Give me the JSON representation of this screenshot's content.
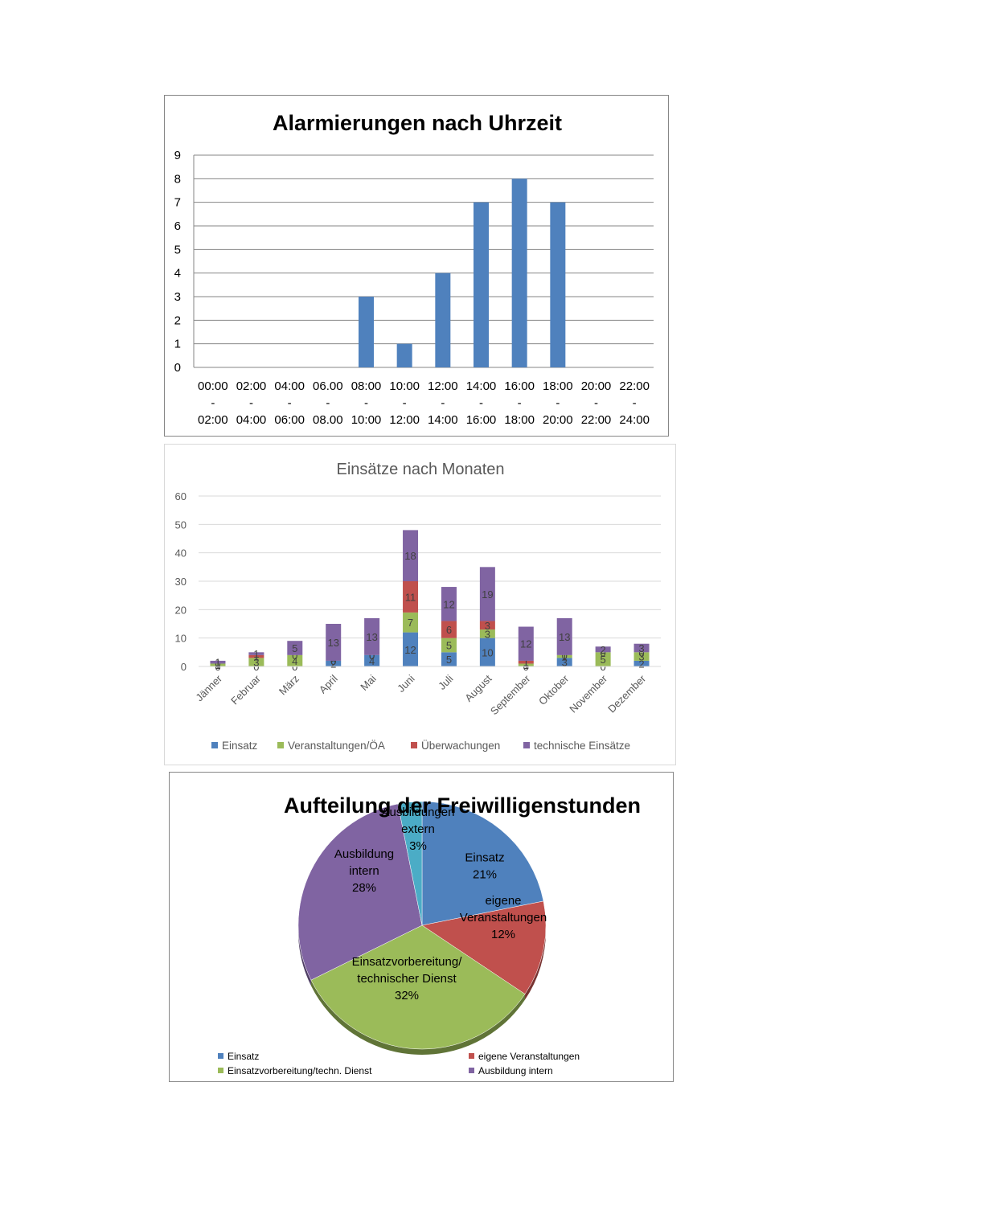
{
  "chart_data": [
    {
      "type": "bar",
      "title": "Alarmierungen nach Uhrzeit",
      "categories": [
        [
          "00:00",
          "-",
          "02:00"
        ],
        [
          "02:00",
          "-",
          "04:00"
        ],
        [
          "04:00",
          "-",
          "06:00"
        ],
        [
          "06.00",
          "-",
          "08.00"
        ],
        [
          "08:00",
          "-",
          "10:00"
        ],
        [
          "10:00",
          "-",
          "12:00"
        ],
        [
          "12:00",
          "-",
          "14:00"
        ],
        [
          "14:00",
          "-",
          "16:00"
        ],
        [
          "16:00",
          "-",
          "18:00"
        ],
        [
          "18:00",
          "-",
          "20:00"
        ],
        [
          "20:00",
          "-",
          "22:00"
        ],
        [
          "22:00",
          "-",
          "24:00"
        ]
      ],
      "values": [
        0,
        0,
        0,
        0,
        3,
        1,
        4,
        7,
        8,
        7,
        0,
        0
      ],
      "ylim": [
        0,
        9
      ],
      "yticks": [
        "0",
        "1",
        "2",
        "3",
        "4",
        "5",
        "6",
        "7",
        "8",
        "9"
      ],
      "grid": true,
      "color": "#4f81bd"
    },
    {
      "type": "bar",
      "stacked": true,
      "title": "Einsätze nach Monaten",
      "categories": [
        "Jänner",
        "Februar",
        "März",
        "April",
        "Mai",
        "Juni",
        "Juli",
        "August",
        "September",
        "Oktober",
        "November",
        "Dezember"
      ],
      "series": [
        {
          "name": "Einsatz",
          "color": "#4f81bd",
          "values": [
            0,
            0,
            0,
            2,
            4,
            12,
            5,
            10,
            0,
            3,
            0,
            2
          ]
        },
        {
          "name": "Veranstaltungen/ÖA",
          "color": "#9bbb59",
          "values": [
            1,
            3,
            4,
            0,
            0,
            7,
            5,
            3,
            1,
            1,
            5,
            3
          ]
        },
        {
          "name": "Überwachungen",
          "color": "#c0504d",
          "values": [
            0,
            1,
            0,
            0,
            0,
            11,
            6,
            3,
            1,
            0,
            0,
            0
          ]
        },
        {
          "name": "technische Einsätze",
          "color": "#8064a2",
          "values": [
            1,
            1,
            5,
            13,
            13,
            18,
            12,
            19,
            12,
            13,
            2,
            3
          ]
        }
      ],
      "data_labels": [
        [
          "0",
          "1",
          "0",
          "1"
        ],
        [
          "0",
          "3",
          "1",
          "1"
        ],
        [
          "0",
          "4",
          "0",
          "5"
        ],
        [
          "2",
          "0",
          "0",
          "13"
        ],
        [
          "4",
          "0",
          "0",
          "13"
        ],
        [
          "12",
          "7",
          "11",
          "18"
        ],
        [
          "5",
          "5",
          "6",
          "12"
        ],
        [
          "10",
          "3",
          "3",
          "19"
        ],
        [
          "0",
          "1",
          "1",
          "12"
        ],
        [
          "3",
          "1",
          "0",
          "13"
        ],
        [
          "0",
          "5",
          "0",
          "2"
        ],
        [
          "2",
          "3",
          "0",
          "3"
        ]
      ],
      "ylim": [
        0,
        60
      ],
      "yticks": [
        "0",
        "10",
        "20",
        "30",
        "40",
        "50",
        "60"
      ],
      "grid": true,
      "legend": "bottom"
    },
    {
      "type": "pie",
      "title": "Aufteilung der Freiwilligenstunden",
      "slices": [
        {
          "label": [
            "Einsatz",
            "21%"
          ],
          "value": 21,
          "color": "#4f81bd"
        },
        {
          "label": [
            "eigene",
            "Veranstaltungen",
            "12%"
          ],
          "value": 12,
          "color": "#c0504d"
        },
        {
          "label": [
            "Einsatzvorbereitung/",
            "technischer Dienst",
            "32%"
          ],
          "value": 32,
          "color": "#9bbb59"
        },
        {
          "label": [
            "Ausbildung",
            "intern",
            "28%"
          ],
          "value": 28,
          "color": "#8064a2"
        },
        {
          "label": [
            "Ausbildungen",
            "extern",
            "3%"
          ],
          "value": 3,
          "color": "#4bacc6"
        }
      ],
      "legend": "bottom",
      "legend_entries": [
        {
          "label": "Einsatz",
          "color": "#4f81bd"
        },
        {
          "label": "eigene Veranstaltungen",
          "color": "#c0504d"
        },
        {
          "label": "Einsatzvorbereitung/techn. Dienst",
          "color": "#9bbb59"
        },
        {
          "label": "Ausbildung intern",
          "color": "#8064a2"
        }
      ]
    }
  ]
}
